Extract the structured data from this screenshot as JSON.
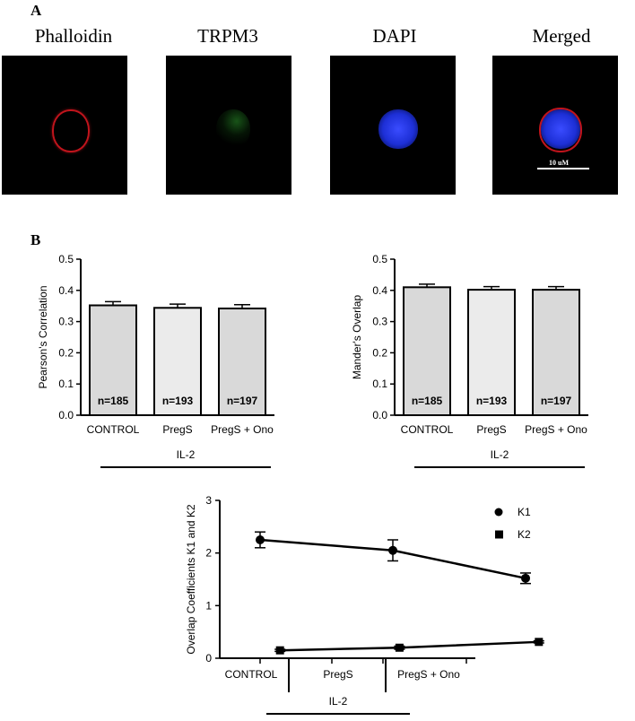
{
  "panel_a": {
    "letter": "A",
    "images": [
      {
        "title": "Phalloidin"
      },
      {
        "title": "TRPM3"
      },
      {
        "title": "DAPI"
      },
      {
        "title": "Merged",
        "scale_label": "10 uM"
      }
    ]
  },
  "panel_b": {
    "letter": "B"
  },
  "chart_data": [
    {
      "type": "bar",
      "ylabel": "Pearson's Correlation",
      "categories": [
        "CONTROL",
        "PregS",
        "PregS + Ono"
      ],
      "values": [
        0.352,
        0.344,
        0.342
      ],
      "errors": [
        0.012,
        0.012,
        0.012
      ],
      "bar_labels": [
        "n=185",
        "n=193",
        "n=197"
      ],
      "bar_colors": [
        "#d9d9d9",
        "#ebebeb",
        "#d9d9d9"
      ],
      "ylim": [
        0,
        0.5
      ],
      "yticks": [
        "0.0",
        "0.1",
        "0.2",
        "0.3",
        "0.4",
        "0.5"
      ],
      "group_label": "IL-2"
    },
    {
      "type": "bar",
      "ylabel": "Mander's Overlap",
      "categories": [
        "CONTROL",
        "PregS",
        "PregS + Ono"
      ],
      "values": [
        0.41,
        0.402,
        0.402
      ],
      "errors": [
        0.01,
        0.01,
        0.01
      ],
      "bar_labels": [
        "n=185",
        "n=193",
        "n=197"
      ],
      "bar_colors": [
        "#d9d9d9",
        "#ebebeb",
        "#d9d9d9"
      ],
      "ylim": [
        0,
        0.5
      ],
      "yticks": [
        "0.0",
        "0.1",
        "0.2",
        "0.3",
        "0.4",
        "0.5"
      ],
      "group_label": "IL-2"
    },
    {
      "type": "line",
      "ylabel": "Overlap Coefficients K1 and K2",
      "categories": [
        "CONTROL",
        "PregS",
        "PregS + Ono"
      ],
      "ylim": [
        0,
        3
      ],
      "yticks": [
        "0",
        "1",
        "2",
        "3"
      ],
      "series": [
        {
          "name": "K1",
          "marker": "circle",
          "x": [
            0,
            1,
            2
          ],
          "values": [
            2.25,
            2.05,
            1.52
          ],
          "errors": [
            0.15,
            0.2,
            0.1
          ]
        },
        {
          "name": "K2",
          "marker": "square",
          "x": [
            0.15,
            1.05,
            2.1
          ],
          "values": [
            0.15,
            0.2,
            0.31
          ],
          "errors": [
            0.02,
            0.03,
            0.02
          ]
        }
      ],
      "group_label": "IL-2"
    }
  ]
}
